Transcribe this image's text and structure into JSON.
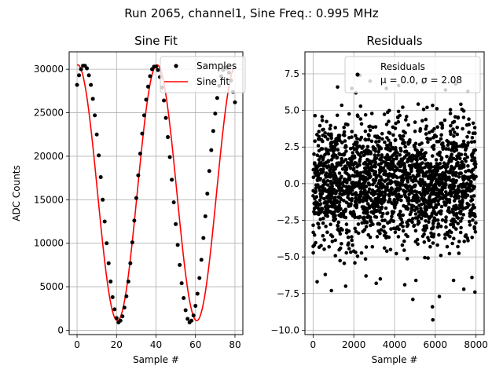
{
  "suptitle": "Run 2065, channel1, Sine Freq.: 0.995 MHz",
  "colors": {
    "samples": "#000000",
    "fit": "#ff0000",
    "grid": "#b0b0b0",
    "legend_bg": "#ffffff"
  },
  "chart_data": [
    {
      "type": "scatter",
      "title": "Sine Fit",
      "xlabel": "Sample #",
      "ylabel": "ADC Counts",
      "xlim": [
        -4,
        84
      ],
      "ylim": [
        -500,
        32000
      ],
      "xticks": [
        0,
        20,
        40,
        60,
        80
      ],
      "xtick_labels": [
        "0",
        "20",
        "40",
        "60",
        "80"
      ],
      "yticks": [
        0,
        5000,
        10000,
        15000,
        20000,
        25000,
        30000
      ],
      "ytick_labels": [
        "0",
        "5000",
        "10000",
        "15000",
        "20000",
        "25000",
        "30000"
      ],
      "grid": true,
      "legend": {
        "position": "top-right",
        "entries": [
          "Samples",
          "Sine fit"
        ]
      },
      "fit_model": {
        "offset": 15800,
        "amplitude": 14700,
        "period": 40.2,
        "phase_deg": 87
      },
      "series": [
        {
          "name": "Samples",
          "kind": "scatter",
          "x": [
            0,
            1,
            2,
            3,
            4,
            5,
            6,
            7,
            8,
            9,
            10,
            11,
            12,
            13,
            14,
            15,
            16,
            17,
            18,
            19,
            20,
            21,
            22,
            23,
            24,
            25,
            26,
            27,
            28,
            29,
            30,
            31,
            32,
            33,
            34,
            35,
            36,
            37,
            38,
            39,
            40,
            41,
            42,
            43,
            44,
            45,
            46,
            47,
            48,
            49,
            50,
            51,
            52,
            53,
            54,
            55,
            56,
            57,
            58,
            59,
            60,
            61,
            62,
            63,
            64,
            65,
            66,
            67,
            68,
            69,
            70,
            71,
            72,
            73,
            74,
            75,
            76,
            77,
            78,
            79,
            80
          ],
          "y": [
            28200,
            29300,
            30000,
            30400,
            30400,
            30100,
            29300,
            28200,
            26600,
            24700,
            22500,
            20100,
            17600,
            15000,
            12500,
            10000,
            7700,
            5600,
            3800,
            2400,
            1400,
            900,
            1100,
            1600,
            2600,
            3900,
            5600,
            7700,
            10100,
            12600,
            15200,
            17800,
            20300,
            22600,
            24700,
            26500,
            28000,
            29200,
            30000,
            30300,
            30300,
            29900,
            29100,
            27900,
            26400,
            24400,
            22200,
            19900,
            17300,
            14700,
            12200,
            9800,
            7500,
            5400,
            3700,
            2300,
            1300,
            900,
            1100,
            1700,
            2800,
            4200,
            6000,
            8100,
            10600,
            13100,
            15700,
            18300,
            20700,
            22900,
            24900,
            26700,
            28100,
            29200,
            29900,
            30200,
            30100,
            29600,
            28700,
            27400,
            26200
          ]
        },
        {
          "name": "Sine fit",
          "kind": "line"
        }
      ]
    },
    {
      "type": "scatter",
      "title": "Residuals",
      "xlabel": "Sample #",
      "ylabel": "",
      "xlim": [
        -400,
        8400
      ],
      "ylim": [
        -10.3,
        9.0
      ],
      "xticks": [
        0,
        2000,
        4000,
        6000,
        8000
      ],
      "xtick_labels": [
        "0",
        "2000",
        "4000",
        "6000",
        "8000"
      ],
      "yticks": [
        -10.0,
        -7.5,
        -5.0,
        -2.5,
        0.0,
        2.5,
        5.0,
        7.5
      ],
      "ytick_labels": [
        "−10.0",
        "−7.5",
        "−5.0",
        "−2.5",
        "0.0",
        "2.5",
        "5.0",
        "7.5"
      ],
      "grid": true,
      "legend": {
        "position": "top-right",
        "entries": [
          "Residuals",
          "μ = 0.0, σ = 2.08"
        ]
      },
      "stats": {
        "mu": 0.0,
        "sigma": 2.08,
        "n_samples": 8000,
        "clip": 5.5
      },
      "series": [
        {
          "name": "Residuals",
          "kind": "scatter",
          "outliers_x": [
            5880,
            5860,
            2300,
            4900,
            6200,
            900,
            1600,
            7400,
            7950,
            3100,
            6900,
            4500,
            200,
            2800,
            5400,
            7000,
            1200,
            3600,
            600,
            7800,
            4200,
            5050,
            2600,
            6500,
            1900,
            3300,
            2100,
            7600
          ],
          "outliers_y": [
            -9.3,
            -8.4,
            7.4,
            -7.9,
            -7.7,
            -7.3,
            -7.0,
            -7.2,
            -7.4,
            -6.8,
            -6.6,
            -6.9,
            -6.7,
            7.0,
            6.9,
            6.8,
            6.6,
            6.5,
            -6.2,
            -6.4,
            6.7,
            -6.6,
            -6.3,
            6.4,
            6.5,
            -6.5,
            6.2,
            6.3
          ]
        }
      ]
    }
  ]
}
